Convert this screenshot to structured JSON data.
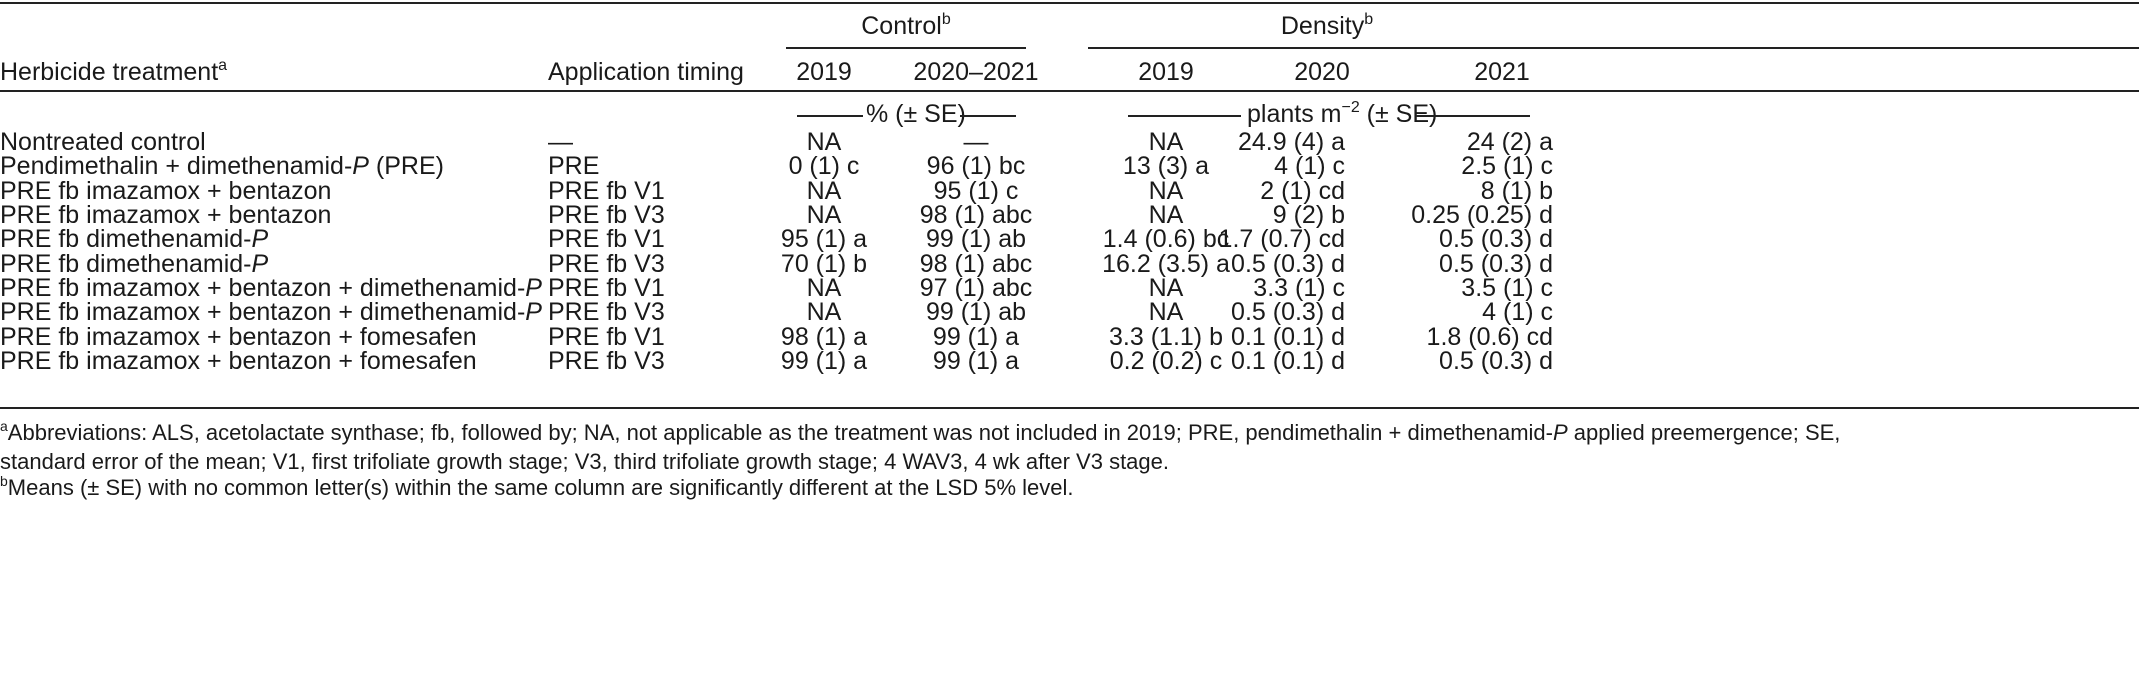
{
  "header": {
    "group_control": "Control",
    "group_control_sup": "b",
    "group_density": "Density",
    "group_density_sup": "b",
    "col_treatment": "Herbicide treatment",
    "col_treatment_sup": "a",
    "col_timing": "Application timing",
    "ctrl_2019": "2019",
    "ctrl_2020_2021": "2020–2021",
    "dens_2019": "2019",
    "dens_2020": "2020",
    "dens_2021": "2021",
    "units_control": "% (± SE)",
    "units_density_pre": "plants m",
    "units_density_exp": "−2",
    "units_density_post": " (± SE)"
  },
  "rows": [
    {
      "treatment": "Nontreated control",
      "italic_suffix": "",
      "suffix": "",
      "timing": "—",
      "c2019": "NA",
      "c2020": "—",
      "d2019": "NA",
      "d2020": "24.9 (4) a",
      "d2021": "24 (2) a"
    },
    {
      "treatment": "Pendimethalin + dimethenamid-",
      "italic_suffix": "P",
      "suffix": " (PRE)",
      "timing": "PRE",
      "c2019": "0 (1) c",
      "c2020": "96 (1) bc",
      "d2019": "13 (3) a",
      "d2020": "4 (1) c",
      "d2021": "2.5 (1) c"
    },
    {
      "treatment": "PRE fb imazamox + bentazon",
      "italic_suffix": "",
      "suffix": "",
      "timing": "PRE fb V1",
      "c2019": "NA",
      "c2020": "95 (1) c",
      "d2019": "NA",
      "d2020": "2 (1) cd",
      "d2021": "8 (1) b"
    },
    {
      "treatment": "PRE fb imazamox + bentazon",
      "italic_suffix": "",
      "suffix": "",
      "timing": "PRE fb V3",
      "c2019": "NA",
      "c2020": "98 (1) abc",
      "d2019": "NA",
      "d2020": "9 (2) b",
      "d2021": "0.25 (0.25) d"
    },
    {
      "treatment": "PRE fb dimethenamid-",
      "italic_suffix": "P",
      "suffix": "",
      "timing": "PRE fb V1",
      "c2019": "95 (1) a",
      "c2020": "99 (1) ab",
      "d2019": "1.4 (0.6) bc",
      "d2020": "1.7 (0.7) cd",
      "d2021": "0.5 (0.3) d"
    },
    {
      "treatment": "PRE fb dimethenamid-",
      "italic_suffix": "P",
      "suffix": "",
      "timing": "PRE fb V3",
      "c2019": "70 (1) b",
      "c2020": "98 (1) abc",
      "d2019": "16.2 (3.5) a",
      "d2020": "0.5 (0.3) d",
      "d2021": "0.5 (0.3) d"
    },
    {
      "treatment": "PRE fb imazamox + bentazon + dimethenamid-",
      "italic_suffix": "P",
      "suffix": "",
      "timing": "PRE fb V1",
      "c2019": "NA",
      "c2020": "97 (1) abc",
      "d2019": "NA",
      "d2020": "3.3 (1) c",
      "d2021": "3.5 (1) c"
    },
    {
      "treatment": "PRE fb imazamox + bentazon + dimethenamid-",
      "italic_suffix": "P",
      "suffix": "",
      "timing": "PRE fb V3",
      "c2019": "NA",
      "c2020": "99 (1) ab",
      "d2019": "NA",
      "d2020": "0.5 (0.3) d",
      "d2021": "4 (1) c"
    },
    {
      "treatment": "PRE fb imazamox + bentazon + fomesafen",
      "italic_suffix": "",
      "suffix": "",
      "timing": "PRE fb V1",
      "c2019": "98 (1) a",
      "c2020": "99 (1) a",
      "d2019": "3.3 (1.1) b",
      "d2020": "0.1 (0.1) d",
      "d2021": "1.8 (0.6) cd"
    },
    {
      "treatment": "PRE fb imazamox + bentazon + fomesafen",
      "italic_suffix": "",
      "suffix": "",
      "timing": "PRE fb V3",
      "c2019": "99 (1) a",
      "c2020": "99 (1) a",
      "d2019": "0.2 (0.2) c",
      "d2020": "0.1 (0.1) d",
      "d2021": "0.5 (0.3) d"
    }
  ],
  "footnotes": {
    "a_sup": "a",
    "a_line1_pre": "Abbreviations: ALS, acetolactate synthase; fb, followed by; NA, not applicable as the treatment was not included in 2019; PRE, pendimethalin + dimethenamid-",
    "a_line1_italic": "P",
    "a_line1_post": " applied preemergence; SE,",
    "a_line2": "standard error of the mean; V1, first trifoliate growth stage; V3, third trifoliate growth stage; 4 WAV3, 4 wk after V3 stage.",
    "b_sup": "b",
    "b_line": "Means (± SE) with no common letter(s) within the same column are significantly different at the LSD 5% level."
  }
}
